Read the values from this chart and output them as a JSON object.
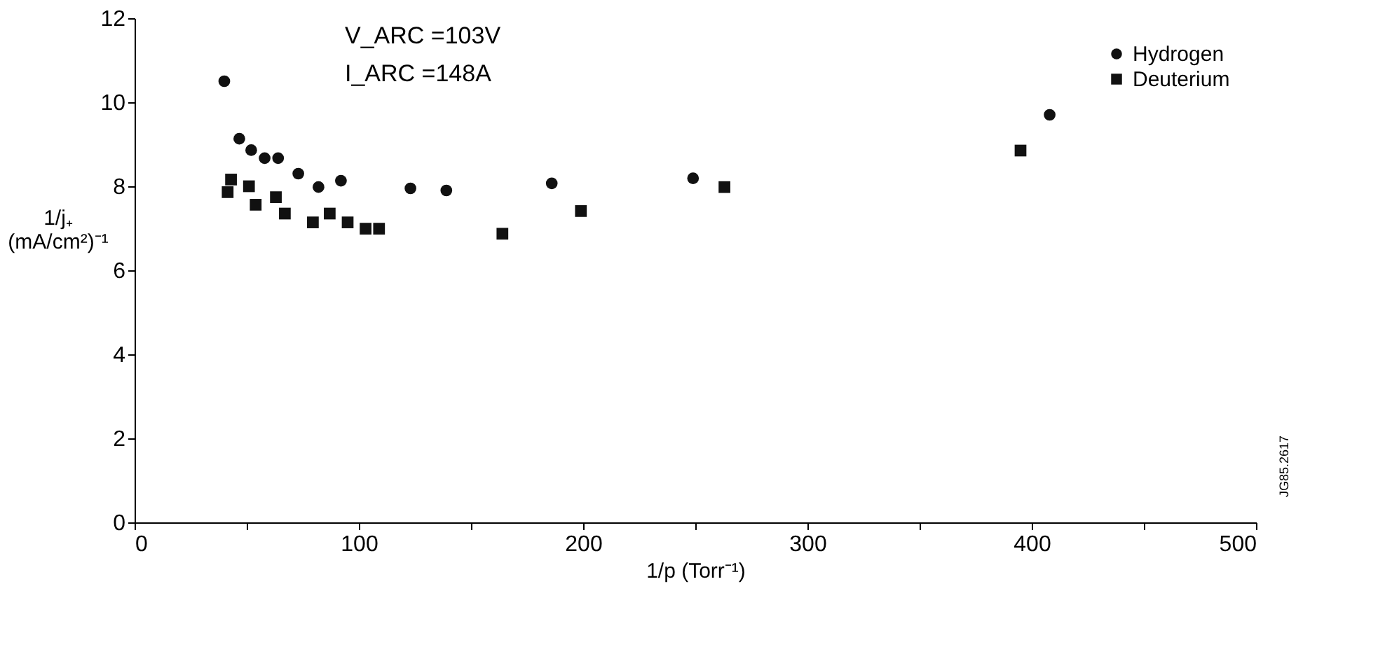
{
  "chart_data": {
    "type": "scatter",
    "xlabel": "1/p (Torr⁻¹)",
    "ylabel": "1/j₊ (mA/cm²)⁻¹",
    "annotations": [
      "V_ARC =103V",
      "I_ARC =148A",
      "JG85.2617"
    ],
    "series": [
      {
        "name": "Hydrogen",
        "color": "#111111",
        "marker": "circle",
        "x": [
          40,
          46.7,
          52,
          58,
          64,
          73,
          82,
          92,
          123,
          139,
          186,
          249,
          408
        ],
        "values": [
          10.5,
          9.13,
          8.86,
          8.67,
          8.67,
          8.3,
          7.98,
          8.13,
          7.95,
          7.9,
          8.07,
          8.19,
          9.7
        ]
      },
      {
        "name": "Deuterium",
        "color": "#111111",
        "marker": "square",
        "x": [
          41.5,
          43,
          51,
          54,
          63,
          67,
          79.5,
          87,
          95,
          103,
          109,
          164,
          199,
          263,
          395
        ],
        "values": [
          7.86,
          8.16,
          8.0,
          7.56,
          7.74,
          7.35,
          7.14,
          7.35,
          7.14,
          6.99,
          6.99,
          6.87,
          7.41,
          7.98,
          8.85
        ]
      }
    ],
    "xlim": [
      0,
      500
    ],
    "xticks": [
      0,
      {
        "value": 50,
        "label": null
      },
      100,
      {
        "value": 150,
        "label": null
      },
      200,
      {
        "value": 250,
        "label": null
      },
      300,
      {
        "value": 350,
        "label": null
      },
      400,
      {
        "value": 450,
        "label": null
      },
      500
    ],
    "ylim": [
      0,
      12
    ],
    "yticks": [
      0,
      2,
      4,
      6,
      8,
      10,
      12
    ],
    "grid": false,
    "legend": "top right"
  }
}
